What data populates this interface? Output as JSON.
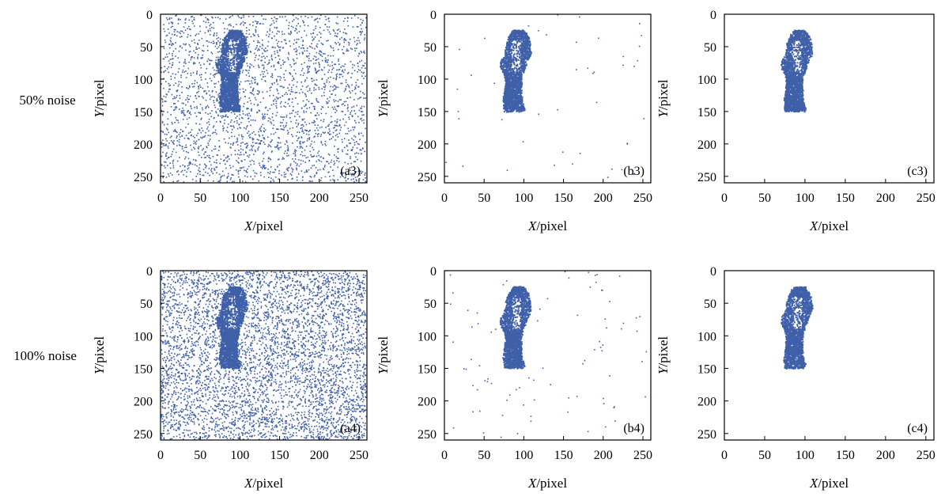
{
  "colors": {
    "points": "#3f60a8",
    "axis": "#000000",
    "background": "#ffffff"
  },
  "row_labels": [
    "50% noise",
    "100% noise"
  ],
  "chart_data": [
    {
      "id": "a3",
      "type": "scatter",
      "panel_label": "(a3)",
      "noise": "50%",
      "noise_points": 2600,
      "xlabel_var": "X",
      "xlabel_unit": "/pixel",
      "ylabel_var": "Y",
      "ylabel_unit": "/pixel",
      "xlim": [
        0,
        260
      ],
      "ylim": [
        0,
        260
      ],
      "y_inverted": true,
      "xticks": [
        0,
        50,
        100,
        150,
        200,
        250
      ],
      "yticks": [
        0,
        50,
        100,
        150,
        200,
        250
      ],
      "grid": false,
      "marker_color": "#3f60a8"
    },
    {
      "id": "b3",
      "type": "scatter",
      "panel_label": "(b3)",
      "noise": "50%",
      "noise_points": 45,
      "xlabel_var": "X",
      "xlabel_unit": "/pixel",
      "ylabel_var": "Y",
      "ylabel_unit": "/pixel",
      "xlim": [
        0,
        260
      ],
      "ylim": [
        0,
        260
      ],
      "y_inverted": true,
      "xticks": [
        0,
        50,
        100,
        150,
        200,
        250
      ],
      "yticks": [
        0,
        50,
        100,
        150,
        200,
        250
      ],
      "grid": false,
      "marker_color": "#3f60a8"
    },
    {
      "id": "c3",
      "type": "scatter",
      "panel_label": "(c3)",
      "noise": "50%",
      "noise_points": 0,
      "xlabel_var": "X",
      "xlabel_unit": "/pixel",
      "ylabel_var": "Y",
      "ylabel_unit": "/pixel",
      "xlim": [
        0,
        260
      ],
      "ylim": [
        0,
        260
      ],
      "y_inverted": true,
      "xticks": [
        0,
        50,
        100,
        150,
        200,
        250
      ],
      "yticks": [
        0,
        50,
        100,
        150,
        200,
        250
      ],
      "grid": false,
      "marker_color": "#3f60a8"
    },
    {
      "id": "a4",
      "type": "scatter",
      "panel_label": "(a4)",
      "noise": "100%",
      "noise_points": 5000,
      "xlabel_var": "X",
      "xlabel_unit": "/pixel",
      "ylabel_var": "Y",
      "ylabel_unit": "/pixel",
      "xlim": [
        0,
        260
      ],
      "ylim": [
        0,
        260
      ],
      "y_inverted": true,
      "xticks": [
        0,
        50,
        100,
        150,
        200,
        250
      ],
      "yticks": [
        0,
        50,
        100,
        150,
        200,
        250
      ],
      "grid": false,
      "marker_color": "#3f60a8"
    },
    {
      "id": "b4",
      "type": "scatter",
      "panel_label": "(b4)",
      "noise": "100%",
      "noise_points": 90,
      "xlabel_var": "X",
      "xlabel_unit": "/pixel",
      "ylabel_var": "Y",
      "ylabel_unit": "/pixel",
      "xlim": [
        0,
        260
      ],
      "ylim": [
        0,
        260
      ],
      "y_inverted": true,
      "xticks": [
        0,
        50,
        100,
        150,
        200,
        250
      ],
      "yticks": [
        0,
        50,
        100,
        150,
        200,
        250
      ],
      "grid": false,
      "marker_color": "#3f60a8"
    },
    {
      "id": "c4",
      "type": "scatter",
      "panel_label": "(c4)",
      "noise": "100%",
      "noise_points": 0,
      "xlabel_var": "X",
      "xlabel_unit": "/pixel",
      "ylabel_var": "Y",
      "ylabel_unit": "/pixel",
      "xlim": [
        0,
        260
      ],
      "ylim": [
        0,
        260
      ],
      "y_inverted": true,
      "xticks": [
        0,
        50,
        100,
        150,
        200,
        250
      ],
      "yticks": [
        0,
        50,
        100,
        150,
        200,
        250
      ],
      "grid": false,
      "marker_color": "#3f60a8"
    }
  ]
}
